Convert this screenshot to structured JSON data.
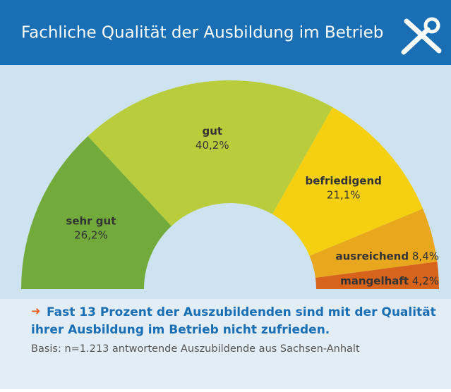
{
  "chart_data": {
    "type": "half-donut",
    "title": "Fachliche Qualität der Ausbildung im Betrieb",
    "categories": [
      "sehr gut",
      "gut",
      "befriedigend",
      "ausreichend",
      "mangelhaft"
    ],
    "values": [
      26.2,
      40.2,
      21.1,
      8.4,
      4.2
    ],
    "value_labels": [
      "26,2%",
      "40,2%",
      "21,1%",
      "8,4%",
      "4,2%"
    ],
    "colors": [
      "#72ab3c",
      "#b9cd3c",
      "#f5d010",
      "#e8a71c",
      "#d8641c"
    ],
    "note_lines": [
      "Fast 13 Prozent der Auszubildenden sind mit der Qualität",
      "ihrer Ausbildung im Betrieb nicht zufrieden."
    ],
    "source": "Basis: n=1.213 antwortende Auszubildende aus Sachsen-Anhalt"
  }
}
